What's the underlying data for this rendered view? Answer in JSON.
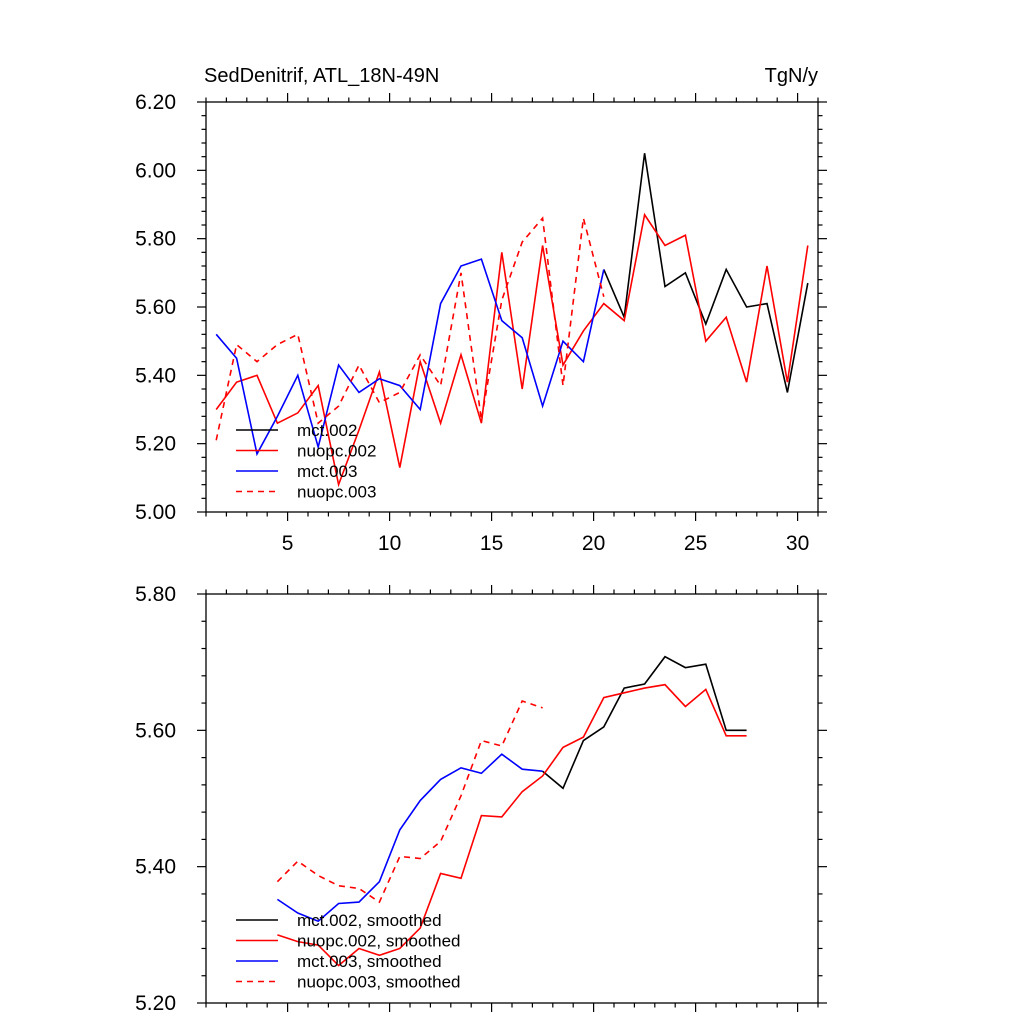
{
  "chart_data": [
    {
      "type": "line",
      "title": "SedDenitrif, ATL_18N-49N",
      "units": "TgN/y",
      "xlabel": "",
      "ylabel": "",
      "xlim": [
        1,
        31
      ],
      "ylim": [
        5.0,
        6.2
      ],
      "x_ticks": [
        5,
        10,
        15,
        20,
        25,
        30
      ],
      "y_ticks": [
        "5.00",
        "5.20",
        "5.40",
        "5.60",
        "5.80",
        "6.00",
        "6.20"
      ],
      "legend_position": "bottom-left",
      "series": [
        {
          "name": "mct.002",
          "color": "#000000",
          "dash": "solid",
          "x": [
            20.5,
            21.5,
            22.5,
            23.5,
            24.5,
            25.5,
            26.5,
            27.5,
            28.5,
            29.5,
            30.5
          ],
          "values": [
            5.71,
            5.57,
            6.05,
            5.66,
            5.7,
            5.55,
            5.71,
            5.6,
            5.61,
            5.35,
            5.67
          ]
        },
        {
          "name": "nuopc.002",
          "color": "#ff0000",
          "dash": "solid",
          "x": [
            1.5,
            2.5,
            3.5,
            4.5,
            5.5,
            6.5,
            7.5,
            8.5,
            9.5,
            10.5,
            11.5,
            12.5,
            13.5,
            14.5,
            15.5,
            16.5,
            17.5,
            18.5,
            19.5,
            20.5,
            21.5,
            22.5,
            23.5,
            24.5,
            25.5,
            26.5,
            27.5,
            28.5,
            29.5,
            30.5
          ],
          "values": [
            5.3,
            5.38,
            5.4,
            5.26,
            5.29,
            5.37,
            5.08,
            5.24,
            5.41,
            5.13,
            5.44,
            5.26,
            5.46,
            5.26,
            5.76,
            5.36,
            5.78,
            5.43,
            5.53,
            5.61,
            5.56,
            5.87,
            5.78,
            5.81,
            5.5,
            5.57,
            5.38,
            5.72,
            5.38,
            5.78
          ]
        },
        {
          "name": "mct.003",
          "color": "#0000ff",
          "dash": "solid",
          "x": [
            1.5,
            2.5,
            3.5,
            4.5,
            5.5,
            6.5,
            7.5,
            8.5,
            9.5,
            10.5,
            11.5,
            12.5,
            13.5,
            14.5,
            15.5,
            16.5,
            17.5,
            18.5,
            19.5,
            20.5
          ],
          "values": [
            5.52,
            5.45,
            5.17,
            5.28,
            5.4,
            5.19,
            5.43,
            5.35,
            5.39,
            5.37,
            5.3,
            5.61,
            5.72,
            5.74,
            5.56,
            5.51,
            5.31,
            5.5,
            5.44,
            5.71
          ]
        },
        {
          "name": "nuopc.003",
          "color": "#ff0000",
          "dash": "dashed",
          "x": [
            1.5,
            2.5,
            3.5,
            4.5,
            5.5,
            6.5,
            7.5,
            8.5,
            9.5,
            10.5,
            11.5,
            12.5,
            13.5,
            14.5,
            15.5,
            16.5,
            17.5,
            18.5,
            19.5,
            20.5
          ],
          "values": [
            5.21,
            5.49,
            5.44,
            5.49,
            5.52,
            5.26,
            5.31,
            5.43,
            5.32,
            5.35,
            5.46,
            5.37,
            5.7,
            5.27,
            5.62,
            5.79,
            5.86,
            5.37,
            5.86,
            5.63
          ]
        }
      ]
    },
    {
      "type": "line",
      "title": "",
      "xlabel": "",
      "ylabel": "",
      "xlim": [
        1,
        31
      ],
      "ylim": [
        5.2,
        5.8
      ],
      "x_ticks": [
        5,
        10,
        15,
        20,
        25,
        30
      ],
      "y_ticks": [
        "5.20",
        "5.40",
        "5.60",
        "5.80"
      ],
      "legend_position": "bottom-left",
      "series": [
        {
          "name": "mct.002, smoothed",
          "color": "#000000",
          "dash": "solid",
          "x": [
            17.5,
            18.5,
            19.5,
            20.5,
            21.5,
            22.5,
            23.5,
            24.5,
            25.5,
            26.5,
            27.5
          ],
          "values": [
            5.54,
            5.515,
            5.585,
            5.605,
            5.662,
            5.668,
            5.708,
            5.692,
            5.697,
            5.6,
            5.6
          ]
        },
        {
          "name": "nuopc.002, smoothed",
          "color": "#ff0000",
          "dash": "solid",
          "x": [
            4.5,
            5.5,
            6.5,
            7.5,
            8.5,
            9.5,
            10.5,
            11.5,
            12.5,
            13.5,
            14.5,
            15.5,
            16.5,
            17.5,
            18.5,
            19.5,
            20.5,
            21.5,
            22.5,
            23.5,
            24.5,
            25.5,
            26.5,
            27.5
          ],
          "values": [
            5.3,
            5.29,
            5.285,
            5.255,
            5.28,
            5.27,
            5.28,
            5.31,
            5.39,
            5.383,
            5.475,
            5.473,
            5.51,
            5.533,
            5.575,
            5.59,
            5.648,
            5.655,
            5.662,
            5.667,
            5.635,
            5.66,
            5.592,
            5.592
          ]
        },
        {
          "name": "mct.003, smoothed",
          "color": "#0000ff",
          "dash": "solid",
          "x": [
            4.5,
            5.5,
            6.5,
            7.5,
            8.5,
            9.5,
            10.5,
            11.5,
            12.5,
            13.5,
            14.5,
            15.5,
            16.5,
            17.5
          ],
          "values": [
            5.352,
            5.332,
            5.32,
            5.346,
            5.348,
            5.378,
            5.454,
            5.497,
            5.528,
            5.545,
            5.537,
            5.565,
            5.543,
            5.54
          ]
        },
        {
          "name": "nuopc.003, smoothed",
          "color": "#ff0000",
          "dash": "dashed",
          "x": [
            4.5,
            5.5,
            6.5,
            7.5,
            8.5,
            9.5,
            10.5,
            11.5,
            12.5,
            13.5,
            14.5,
            15.5,
            16.5,
            17.5
          ],
          "values": [
            5.378,
            5.408,
            5.387,
            5.372,
            5.368,
            5.348,
            5.415,
            5.412,
            5.437,
            5.504,
            5.585,
            5.577,
            5.643,
            5.633
          ]
        }
      ]
    }
  ]
}
